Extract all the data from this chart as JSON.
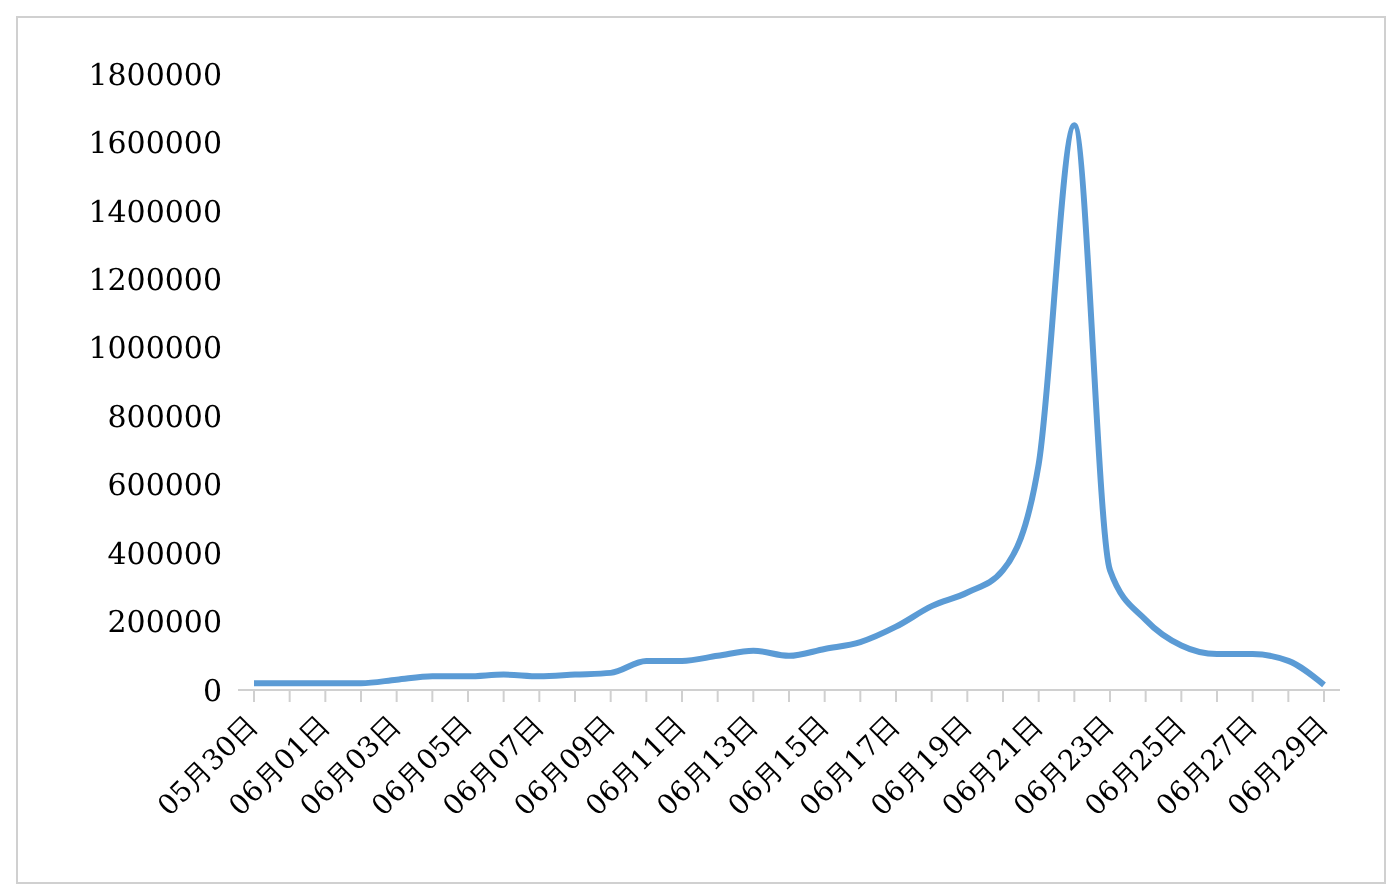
{
  "chart_data": {
    "type": "line",
    "categories": [
      "05月30日",
      null,
      "06月01日",
      null,
      "06月03日",
      null,
      "06月05日",
      null,
      "06月07日",
      null,
      "06月09日",
      null,
      "06月11日",
      null,
      "06月13日",
      null,
      "06月15日",
      null,
      "06月17日",
      null,
      "06月19日",
      null,
      "06月21日",
      null,
      "06月23日",
      null,
      "06月25日",
      null,
      "06月27日",
      null,
      "06月29日"
    ],
    "series": [
      {
        "color": "#5b9bd5",
        "values": [
          20000,
          20000,
          20000,
          20000,
          30000,
          40000,
          40000,
          45000,
          40000,
          45000,
          50000,
          85000,
          85000,
          100000,
          115000,
          100000,
          120000,
          140000,
          185000,
          245000,
          285000,
          350000,
          660000,
          1650000,
          350000,
          205000,
          130000,
          105000,
          105000,
          85000,
          15000
        ]
      }
    ],
    "ylim": [
      0,
      1800000
    ],
    "yticks": [
      0,
      200000,
      400000,
      600000,
      800000,
      1000000,
      1200000,
      1400000,
      1600000,
      1800000
    ],
    "grid": false,
    "marker": "none",
    "line_style": "solid"
  }
}
